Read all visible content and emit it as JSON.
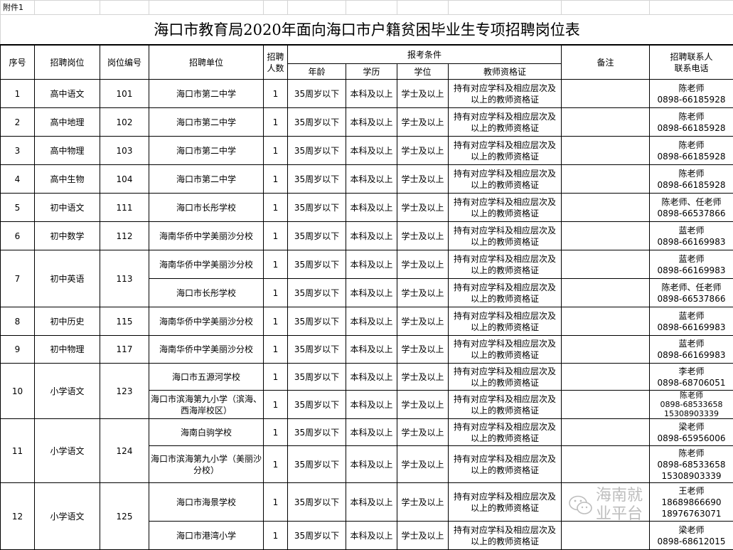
{
  "attachment_label": "附件1",
  "title": "海口市教育局2020年面向海口市户籍贫困毕业生专项招聘岗位表",
  "headers": {
    "seq": "序号",
    "post": "招聘岗位",
    "code": "岗位编号",
    "unit": "招聘单位",
    "count": "招聘\n人数",
    "conditions": "报考条件",
    "age": "年龄",
    "education": "学历",
    "degree": "学位",
    "certificate": "教师资格证",
    "remark": "备注",
    "contact": "招聘联系人\n联系电话"
  },
  "groups": [
    {
      "seq": "1",
      "post": "高中语文",
      "code": "101",
      "rows": [
        {
          "unit": "海口市第二中学",
          "count": "1",
          "age": "35周岁以下",
          "education": "本科及以上",
          "degree": "学士及以上",
          "certificate": "持有对应学科及相应层次及以上的教师资格证",
          "remark": "",
          "contact": "陈老师\n0898-66185928"
        }
      ]
    },
    {
      "seq": "2",
      "post": "高中地理",
      "code": "102",
      "rows": [
        {
          "unit": "海口市第二中学",
          "count": "1",
          "age": "35周岁以下",
          "education": "本科及以上",
          "degree": "学士及以上",
          "certificate": "持有对应学科及相应层次及以上的教师资格证",
          "remark": "",
          "contact": "陈老师\n0898-66185928"
        }
      ]
    },
    {
      "seq": "3",
      "post": "高中物理",
      "code": "103",
      "rows": [
        {
          "unit": "海口市第二中学",
          "count": "1",
          "age": "35周岁以下",
          "education": "本科及以上",
          "degree": "学士及以上",
          "certificate": "持有对应学科及相应层次及以上的教师资格证",
          "remark": "",
          "contact": "陈老师\n0898-66185928"
        }
      ]
    },
    {
      "seq": "4",
      "post": "高中生物",
      "code": "104",
      "rows": [
        {
          "unit": "海口市第二中学",
          "count": "1",
          "age": "35周岁以下",
          "education": "本科及以上",
          "degree": "学士及以上",
          "certificate": "持有对应学科及相应层次及以上的教师资格证",
          "remark": "",
          "contact": "陈老师\n0898-66185928"
        }
      ]
    },
    {
      "seq": "5",
      "post": "初中语文",
      "code": "111",
      "rows": [
        {
          "unit": "海口市长彤学校",
          "count": "1",
          "age": "35周岁以下",
          "education": "本科及以上",
          "degree": "学士及以上",
          "certificate": "持有对应学科及相应层次及以上的教师资格证",
          "remark": "",
          "contact": "陈老师、任老师\n0898-66537866"
        }
      ]
    },
    {
      "seq": "6",
      "post": "初中数学",
      "code": "112",
      "rows": [
        {
          "unit": "海南华侨中学美丽沙分校",
          "count": "1",
          "age": "35周岁以下",
          "education": "本科及以上",
          "degree": "学士及以上",
          "certificate": "持有对应学科及相应层次及以上的教师资格证",
          "remark": "",
          "contact": "蓝老师\n0898-66169983"
        }
      ]
    },
    {
      "seq": "7",
      "post": "初中英语",
      "code": "113",
      "rows": [
        {
          "unit": "海南华侨中学美丽沙分校",
          "count": "1",
          "age": "35周岁以下",
          "education": "本科及以上",
          "degree": "学士及以上",
          "certificate": "持有对应学科及相应层次及以上的教师资格证",
          "remark": "",
          "contact": "蓝老师\n0898-66169983"
        },
        {
          "unit": "海口市长彤学校",
          "count": "1",
          "age": "35周岁以下",
          "education": "本科及以上",
          "degree": "学士及以上",
          "certificate": "持有对应学科及相应层次及以上的教师资格证",
          "remark": "",
          "contact": "陈老师、任老师\n0898-66537866"
        }
      ]
    },
    {
      "seq": "8",
      "post": "初中历史",
      "code": "115",
      "rows": [
        {
          "unit": "海南华侨中学美丽沙分校",
          "count": "1",
          "age": "35周岁以下",
          "education": "本科及以上",
          "degree": "学士及以上",
          "certificate": "持有对应学科及相应层次及以上的教师资格证",
          "remark": "",
          "contact": "蓝老师\n0898-66169983"
        }
      ]
    },
    {
      "seq": "9",
      "post": "初中物理",
      "code": "117",
      "rows": [
        {
          "unit": "海南华侨中学美丽沙分校",
          "count": "1",
          "age": "35周岁以下",
          "education": "本科及以上",
          "degree": "学士及以上",
          "certificate": "持有对应学科及相应层次及以上的教师资格证",
          "remark": "",
          "contact": "蓝老师\n0898-66169983"
        }
      ]
    },
    {
      "seq": "10",
      "post": "小学语文",
      "code": "123",
      "rows": [
        {
          "unit": "海口市五源河学校",
          "count": "1",
          "age": "35周岁以下",
          "education": "本科及以上",
          "degree": "学士及以上",
          "certificate": "持有对应学科及相应层次及以上的教师资格证",
          "remark": "",
          "contact": "李老师\n0898-68706051"
        },
        {
          "unit": "海口市滨海第九小学（滨海、西海岸校区）",
          "count": "1",
          "age": "35周岁以下",
          "education": "本科及以上",
          "degree": "学士及以上",
          "certificate": "持有对应学科及相应层次及以上的教师资格证",
          "remark": "",
          "contact": "陈老师\n0898-68533658\n15308903339"
        }
      ]
    },
    {
      "seq": "11",
      "post": "小学语文",
      "code": "124",
      "rows": [
        {
          "unit": "海南白驹学校",
          "count": "1",
          "age": "35周岁以下",
          "education": "本科及以上",
          "degree": "学士及以上",
          "certificate": "持有对应学科及相应层次及以上的教师资格证",
          "remark": "",
          "contact": "梁老师\n0898-65956006"
        },
        {
          "unit": "海口市滨海第九小学（美丽沙分校）",
          "count": "1",
          "age": "35周岁以下",
          "education": "本科及以上",
          "degree": "学士及以上",
          "certificate": "持有对应学科及相应层次及以上的教师资格证",
          "remark": "",
          "contact": "陈老师\n0898-68533658\n15308903339"
        }
      ]
    },
    {
      "seq": "12",
      "post": "小学语文",
      "code": "125",
      "rows": [
        {
          "unit": "海口市海景学校",
          "count": "1",
          "age": "35周岁以下",
          "education": "本科及以上",
          "degree": "学士及以上",
          "certificate": "持有对应学科及相应层次及以上的教师资格证",
          "remark": "",
          "contact": "王老师\n18689866690\n18976763071"
        },
        {
          "unit": "海口市港湾小学",
          "count": "1",
          "age": "35周岁以下",
          "education": "本科及以上",
          "degree": "学士及以上",
          "certificate": "持有对应学科及相应层次及以上的教师资格证",
          "remark": "",
          "contact": "梁老师\n0898-68612015"
        }
      ]
    }
  ],
  "watermark": {
    "text": "海南就业平台",
    "icon": "wechat-icon"
  }
}
